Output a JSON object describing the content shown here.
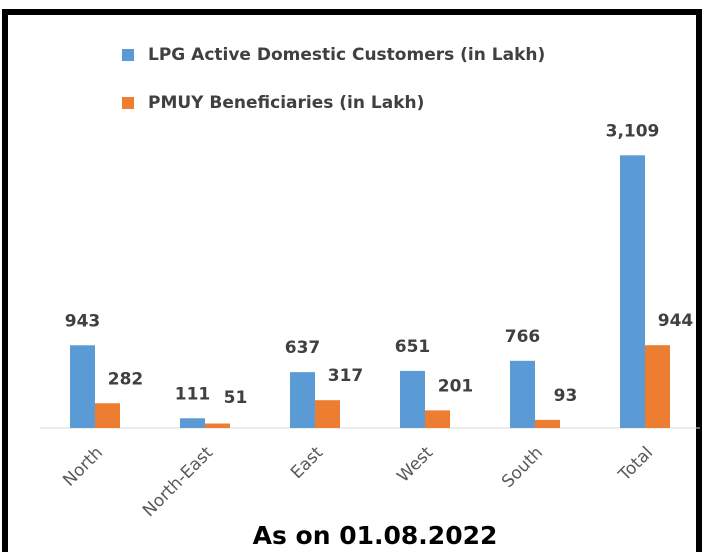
{
  "chart_data": {
    "type": "bar",
    "subtitle": "As on 01.08.2022",
    "categories": [
      "North",
      "North-East",
      "East",
      "West",
      "South",
      "Total"
    ],
    "series": [
      {
        "name": "LPG Active Domestic Customers (in Lakh)",
        "color": "#5b9bd5",
        "values": [
          943,
          111,
          637,
          651,
          766,
          3109
        ],
        "value_labels": [
          "943",
          "111",
          "637",
          "651",
          "766",
          "3,109"
        ]
      },
      {
        "name": "PMUY Beneficiaries (in Lakh)",
        "color": "#ed7d31",
        "values": [
          282,
          51,
          317,
          201,
          93,
          944
        ]
      }
    ],
    "ylim": [
      0,
      3500
    ],
    "grid": false
  }
}
